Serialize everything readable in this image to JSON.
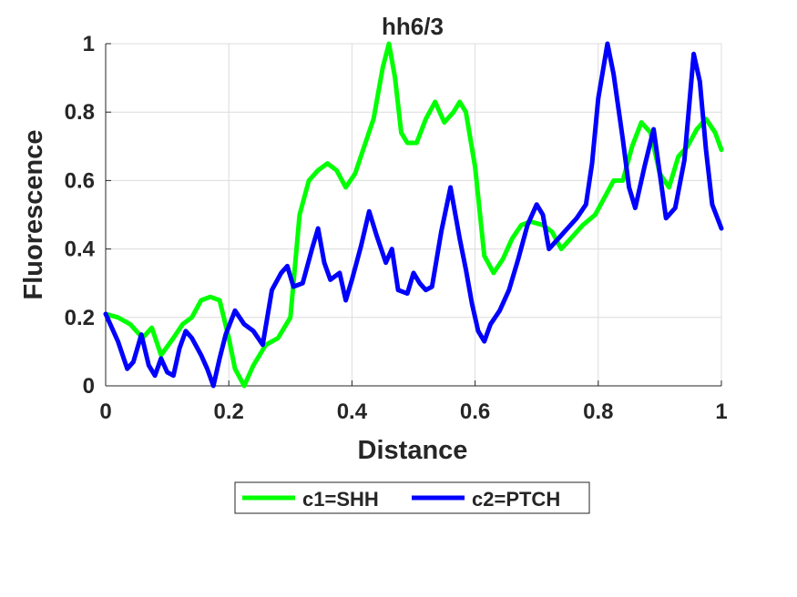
{
  "chart_data": {
    "type": "line",
    "title": "hh6/3",
    "xlabel": "Distance",
    "ylabel": "Fluorescence",
    "xlim": [
      0,
      1
    ],
    "ylim": [
      0,
      1
    ],
    "xticks": [
      "0",
      "0.2",
      "0.4",
      "0.6",
      "0.8",
      "1"
    ],
    "yticks": [
      "0",
      "0.2",
      "0.4",
      "0.6",
      "0.8",
      "1"
    ],
    "grid": true,
    "legend_position": "bottom-outside",
    "series": [
      {
        "name": "c1=SHH",
        "color": "#00ff00",
        "x": [
          0,
          0.02,
          0.04,
          0.06,
          0.075,
          0.09,
          0.11,
          0.125,
          0.14,
          0.155,
          0.17,
          0.185,
          0.2,
          0.21,
          0.225,
          0.24,
          0.26,
          0.28,
          0.3,
          0.315,
          0.33,
          0.345,
          0.36,
          0.375,
          0.39,
          0.405,
          0.42,
          0.435,
          0.45,
          0.46,
          0.47,
          0.48,
          0.49,
          0.505,
          0.52,
          0.535,
          0.55,
          0.565,
          0.575,
          0.585,
          0.6,
          0.615,
          0.63,
          0.645,
          0.66,
          0.675,
          0.69,
          0.71,
          0.725,
          0.74,
          0.755,
          0.775,
          0.795,
          0.81,
          0.825,
          0.84,
          0.855,
          0.87,
          0.885,
          0.9,
          0.915,
          0.93,
          0.945,
          0.96,
          0.975,
          0.99,
          1.0
        ],
        "y": [
          0.21,
          0.2,
          0.18,
          0.14,
          0.17,
          0.09,
          0.14,
          0.18,
          0.2,
          0.25,
          0.26,
          0.25,
          0.14,
          0.05,
          0.0,
          0.06,
          0.12,
          0.14,
          0.2,
          0.5,
          0.6,
          0.63,
          0.65,
          0.63,
          0.58,
          0.62,
          0.7,
          0.78,
          0.93,
          1.0,
          0.9,
          0.74,
          0.71,
          0.71,
          0.78,
          0.83,
          0.77,
          0.8,
          0.83,
          0.8,
          0.64,
          0.38,
          0.33,
          0.37,
          0.43,
          0.47,
          0.48,
          0.47,
          0.45,
          0.4,
          0.43,
          0.47,
          0.5,
          0.55,
          0.6,
          0.6,
          0.7,
          0.77,
          0.74,
          0.62,
          0.58,
          0.67,
          0.7,
          0.75,
          0.78,
          0.74,
          0.69
        ]
      },
      {
        "name": "c2=PTCH",
        "color": "#0000ff",
        "x": [
          0,
          0.02,
          0.035,
          0.045,
          0.058,
          0.07,
          0.08,
          0.09,
          0.1,
          0.11,
          0.12,
          0.13,
          0.14,
          0.155,
          0.165,
          0.175,
          0.185,
          0.195,
          0.21,
          0.225,
          0.24,
          0.255,
          0.27,
          0.285,
          0.295,
          0.305,
          0.32,
          0.335,
          0.345,
          0.355,
          0.365,
          0.38,
          0.39,
          0.4,
          0.415,
          0.428,
          0.44,
          0.455,
          0.465,
          0.475,
          0.49,
          0.5,
          0.51,
          0.52,
          0.53,
          0.545,
          0.56,
          0.575,
          0.585,
          0.595,
          0.605,
          0.615,
          0.625,
          0.64,
          0.655,
          0.67,
          0.685,
          0.7,
          0.71,
          0.72,
          0.735,
          0.75,
          0.765,
          0.78,
          0.79,
          0.8,
          0.815,
          0.825,
          0.84,
          0.85,
          0.86,
          0.875,
          0.89,
          0.9,
          0.91,
          0.925,
          0.94,
          0.955,
          0.965,
          0.975,
          0.985,
          1.0
        ],
        "y": [
          0.21,
          0.13,
          0.05,
          0.07,
          0.15,
          0.06,
          0.03,
          0.08,
          0.04,
          0.03,
          0.11,
          0.16,
          0.14,
          0.09,
          0.05,
          0.0,
          0.08,
          0.15,
          0.22,
          0.18,
          0.16,
          0.12,
          0.28,
          0.33,
          0.35,
          0.29,
          0.3,
          0.4,
          0.46,
          0.36,
          0.31,
          0.33,
          0.25,
          0.31,
          0.41,
          0.51,
          0.44,
          0.36,
          0.4,
          0.28,
          0.27,
          0.33,
          0.3,
          0.28,
          0.29,
          0.45,
          0.58,
          0.43,
          0.34,
          0.24,
          0.16,
          0.13,
          0.18,
          0.22,
          0.28,
          0.37,
          0.47,
          0.53,
          0.5,
          0.4,
          0.43,
          0.46,
          0.49,
          0.53,
          0.65,
          0.84,
          1.0,
          0.91,
          0.72,
          0.58,
          0.52,
          0.64,
          0.75,
          0.62,
          0.49,
          0.52,
          0.66,
          0.97,
          0.89,
          0.69,
          0.53,
          0.46
        ]
      }
    ]
  }
}
